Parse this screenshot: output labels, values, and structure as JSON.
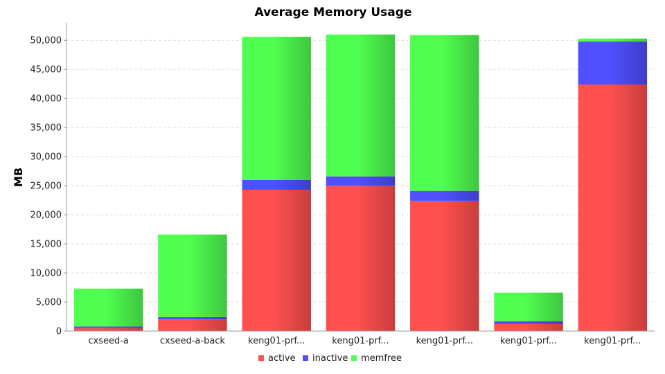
{
  "chart_data": {
    "type": "bar",
    "stacked": true,
    "title": "Average Memory Usage",
    "xlabel": "",
    "ylabel": "MB",
    "ylim": [
      0,
      53000
    ],
    "yticks": [
      0,
      5000,
      10000,
      15000,
      20000,
      25000,
      30000,
      35000,
      40000,
      45000,
      50000
    ],
    "grid": true,
    "legend_position": "bottom",
    "categories": [
      "cxseed-a",
      "cxseed-a-back",
      "keng01-prf...",
      "keng01-prf...",
      "keng01-prf...",
      "keng01-prf...",
      "keng01-prf..."
    ],
    "series": [
      {
        "name": "active",
        "color": "#ff5050",
        "values": [
          500,
          2000,
          24300,
          25000,
          22400,
          1200,
          42400
        ]
      },
      {
        "name": "inactive",
        "color": "#5050ff",
        "values": [
          300,
          400,
          1700,
          1600,
          1700,
          500,
          7400
        ]
      },
      {
        "name": "memfree",
        "color": "#50ff50",
        "values": [
          6500,
          14200,
          24600,
          24400,
          26800,
          4900,
          500
        ]
      }
    ]
  }
}
